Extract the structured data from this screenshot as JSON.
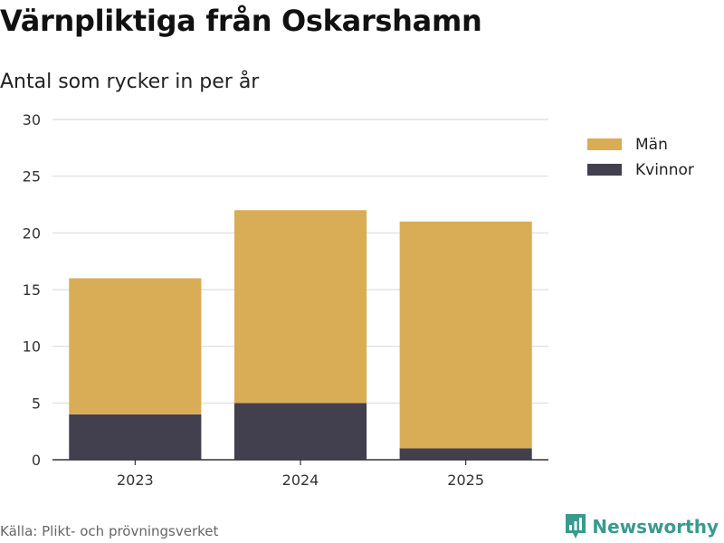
{
  "title": "Värnpliktiga från Oskarshamn",
  "subtitle": "Antal som rycker in per år",
  "source": "Källa: Plikt- och prövningsverket",
  "brand": {
    "name": "Newsworthy",
    "color": "#3a9a8f"
  },
  "chart_data": {
    "type": "bar",
    "stacked": true,
    "categories": [
      "2023",
      "2024",
      "2025"
    ],
    "series": [
      {
        "name": "Kvinnor",
        "values": [
          4,
          5,
          1
        ],
        "color": "#42404f"
      },
      {
        "name": "Män",
        "values": [
          12,
          17,
          20
        ],
        "color": "#d9ac56"
      }
    ],
    "legend_order": [
      "Män",
      "Kvinnor"
    ],
    "ylim": [
      0,
      30
    ],
    "yticks": [
      0,
      5,
      10,
      15,
      20,
      25,
      30
    ],
    "grid": true,
    "legend_position": "top-right",
    "xlabel": "",
    "ylabel": ""
  }
}
